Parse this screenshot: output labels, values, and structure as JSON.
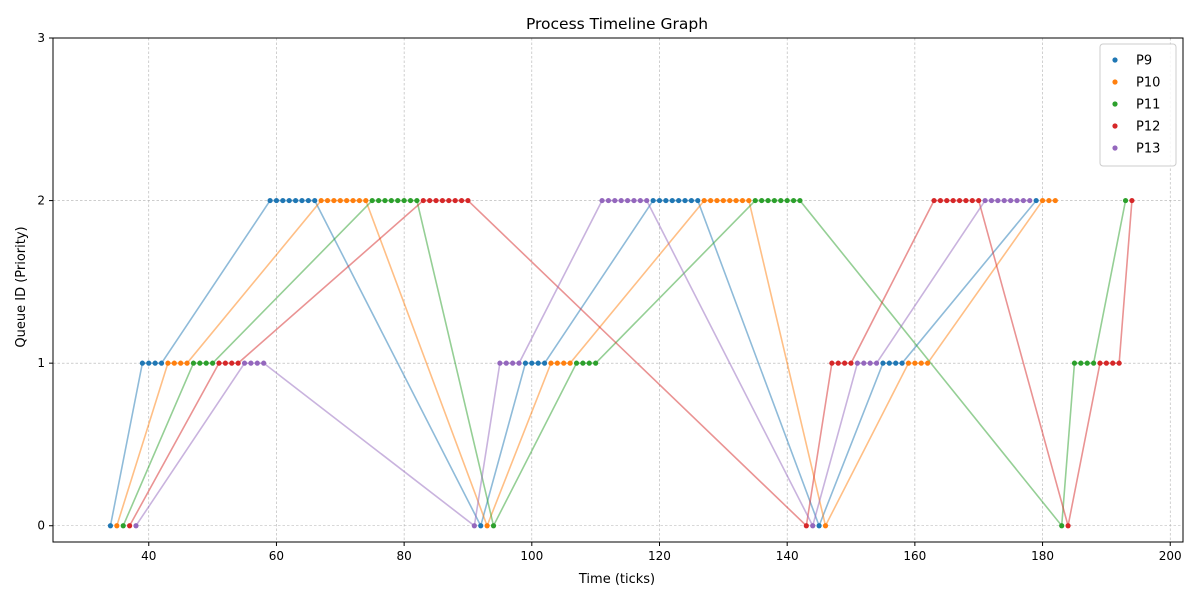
{
  "chart_data": {
    "type": "scatter",
    "title": "Process Timeline Graph",
    "xlabel": "Time (ticks)",
    "ylabel": "Queue ID (Priority)",
    "xlim": [
      25,
      202
    ],
    "ylim": [
      -0.1,
      3
    ],
    "xticks": [
      40,
      60,
      80,
      100,
      120,
      140,
      160,
      180,
      200
    ],
    "yticks": [
      0,
      1,
      2,
      3
    ],
    "grid": true,
    "legend_position": "top-right",
    "series": [
      {
        "name": "P9",
        "color": "#1f77b4",
        "points": [
          [
            34,
            0
          ],
          [
            39,
            1
          ],
          [
            40,
            1
          ],
          [
            41,
            1
          ],
          [
            42,
            1
          ],
          [
            59,
            2
          ],
          [
            60,
            2
          ],
          [
            61,
            2
          ],
          [
            62,
            2
          ],
          [
            63,
            2
          ],
          [
            64,
            2
          ],
          [
            65,
            2
          ],
          [
            66,
            2
          ],
          [
            92,
            0
          ],
          [
            99,
            1
          ],
          [
            100,
            1
          ],
          [
            101,
            1
          ],
          [
            102,
            1
          ],
          [
            119,
            2
          ],
          [
            120,
            2
          ],
          [
            121,
            2
          ],
          [
            122,
            2
          ],
          [
            123,
            2
          ],
          [
            124,
            2
          ],
          [
            125,
            2
          ],
          [
            126,
            2
          ],
          [
            145,
            0
          ],
          [
            155,
            1
          ],
          [
            156,
            1
          ],
          [
            157,
            1
          ],
          [
            158,
            1
          ],
          [
            179,
            2
          ]
        ]
      },
      {
        "name": "P10",
        "color": "#ff7f0e",
        "points": [
          [
            35,
            0
          ],
          [
            43,
            1
          ],
          [
            44,
            1
          ],
          [
            45,
            1
          ],
          [
            46,
            1
          ],
          [
            67,
            2
          ],
          [
            68,
            2
          ],
          [
            69,
            2
          ],
          [
            70,
            2
          ],
          [
            71,
            2
          ],
          [
            72,
            2
          ],
          [
            73,
            2
          ],
          [
            74,
            2
          ],
          [
            93,
            0
          ],
          [
            103,
            1
          ],
          [
            104,
            1
          ],
          [
            105,
            1
          ],
          [
            106,
            1
          ],
          [
            127,
            2
          ],
          [
            128,
            2
          ],
          [
            129,
            2
          ],
          [
            130,
            2
          ],
          [
            131,
            2
          ],
          [
            132,
            2
          ],
          [
            133,
            2
          ],
          [
            134,
            2
          ],
          [
            146,
            0
          ],
          [
            159,
            1
          ],
          [
            160,
            1
          ],
          [
            161,
            1
          ],
          [
            162,
            1
          ],
          [
            180,
            2
          ],
          [
            181,
            2
          ],
          [
            182,
            2
          ]
        ]
      },
      {
        "name": "P11",
        "color": "#2ca02c",
        "points": [
          [
            36,
            0
          ],
          [
            47,
            1
          ],
          [
            48,
            1
          ],
          [
            49,
            1
          ],
          [
            50,
            1
          ],
          [
            75,
            2
          ],
          [
            76,
            2
          ],
          [
            77,
            2
          ],
          [
            78,
            2
          ],
          [
            79,
            2
          ],
          [
            80,
            2
          ],
          [
            81,
            2
          ],
          [
            82,
            2
          ],
          [
            94,
            0
          ],
          [
            107,
            1
          ],
          [
            108,
            1
          ],
          [
            109,
            1
          ],
          [
            110,
            1
          ],
          [
            135,
            2
          ],
          [
            136,
            2
          ],
          [
            137,
            2
          ],
          [
            138,
            2
          ],
          [
            139,
            2
          ],
          [
            140,
            2
          ],
          [
            141,
            2
          ],
          [
            142,
            2
          ],
          [
            183,
            0
          ],
          [
            185,
            1
          ],
          [
            186,
            1
          ],
          [
            187,
            1
          ],
          [
            188,
            1
          ],
          [
            193,
            2
          ]
        ]
      },
      {
        "name": "P12",
        "color": "#d62728",
        "points": [
          [
            37,
            0
          ],
          [
            51,
            1
          ],
          [
            52,
            1
          ],
          [
            53,
            1
          ],
          [
            54,
            1
          ],
          [
            83,
            2
          ],
          [
            84,
            2
          ],
          [
            85,
            2
          ],
          [
            86,
            2
          ],
          [
            87,
            2
          ],
          [
            88,
            2
          ],
          [
            89,
            2
          ],
          [
            90,
            2
          ],
          [
            143,
            0
          ],
          [
            147,
            1
          ],
          [
            148,
            1
          ],
          [
            149,
            1
          ],
          [
            150,
            1
          ],
          [
            163,
            2
          ],
          [
            164,
            2
          ],
          [
            165,
            2
          ],
          [
            166,
            2
          ],
          [
            167,
            2
          ],
          [
            168,
            2
          ],
          [
            169,
            2
          ],
          [
            170,
            2
          ],
          [
            184,
            0
          ],
          [
            189,
            1
          ],
          [
            190,
            1
          ],
          [
            191,
            1
          ],
          [
            192,
            1
          ],
          [
            194,
            2
          ]
        ]
      },
      {
        "name": "P13",
        "color": "#9467bd",
        "points": [
          [
            38,
            0
          ],
          [
            55,
            1
          ],
          [
            56,
            1
          ],
          [
            57,
            1
          ],
          [
            58,
            1
          ],
          [
            91,
            0
          ],
          [
            95,
            1
          ],
          [
            96,
            1
          ],
          [
            97,
            1
          ],
          [
            98,
            1
          ],
          [
            111,
            2
          ],
          [
            112,
            2
          ],
          [
            113,
            2
          ],
          [
            114,
            2
          ],
          [
            115,
            2
          ],
          [
            116,
            2
          ],
          [
            117,
            2
          ],
          [
            118,
            2
          ],
          [
            144,
            0
          ],
          [
            151,
            1
          ],
          [
            152,
            1
          ],
          [
            153,
            1
          ],
          [
            154,
            1
          ],
          [
            171,
            2
          ],
          [
            172,
            2
          ],
          [
            173,
            2
          ],
          [
            174,
            2
          ],
          [
            175,
            2
          ],
          [
            176,
            2
          ],
          [
            177,
            2
          ],
          [
            178,
            2
          ]
        ]
      }
    ]
  }
}
